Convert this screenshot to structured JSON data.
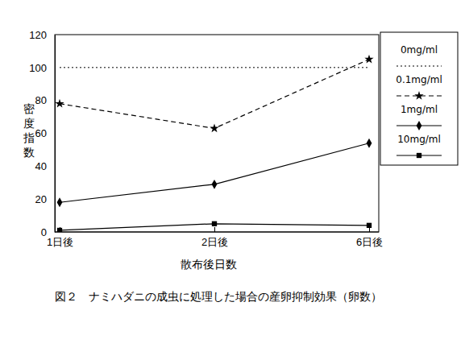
{
  "chart_data": {
    "type": "line",
    "caption": "図２　ナミハダニの成虫に処理した場合の産卵抑制効果（卵数）",
    "x_label": "散布後日数",
    "y_label": "密度指数",
    "categories": [
      "1日後",
      "2日後",
      "6日後"
    ],
    "ylim": [
      0,
      120
    ],
    "yticks": [
      0,
      20,
      40,
      60,
      80,
      100,
      120
    ],
    "legend": "right",
    "series": [
      {
        "name": "0mg/ml",
        "color": "#000000",
        "line_style": "dotted",
        "marker": "none",
        "values": [
          100,
          100,
          100
        ]
      },
      {
        "name": "0.1mg/ml",
        "color": "#000000",
        "line_style": "dashed",
        "marker": "star",
        "values": [
          78,
          63,
          105
        ]
      },
      {
        "name": "1mg/ml",
        "color": "#000000",
        "line_style": "solid",
        "marker": "diamond",
        "values": [
          18,
          29,
          54
        ]
      },
      {
        "name": "10mg/ml",
        "color": "#000000",
        "line_style": "solid",
        "marker": "square",
        "values": [
          1,
          5,
          4
        ]
      }
    ]
  }
}
